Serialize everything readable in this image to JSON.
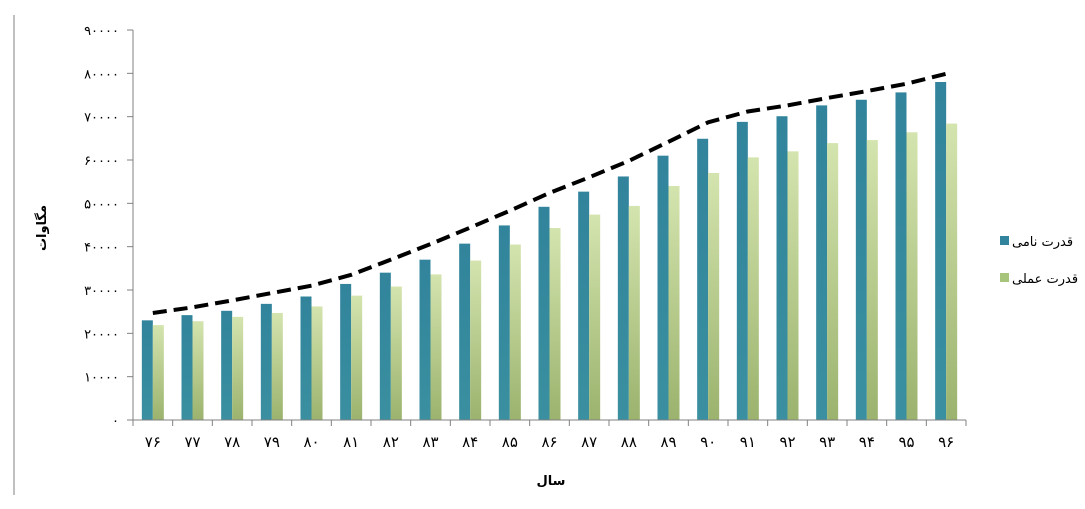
{
  "chart_data": {
    "type": "bar",
    "xlabel": "سال",
    "ylabel": "مگاوات",
    "ylim": [
      0,
      90000
    ],
    "ytick_values": [
      0,
      10000,
      20000,
      30000,
      40000,
      50000,
      60000,
      70000,
      80000,
      90000
    ],
    "ytick_labels": [
      "۰",
      "۱۰۰۰۰",
      "۲۰۰۰۰",
      "۳۰۰۰۰",
      "۴۰۰۰۰",
      "۵۰۰۰۰",
      "۶۰۰۰۰",
      "۷۰۰۰۰",
      "۸۰۰۰۰",
      "۹۰۰۰۰"
    ],
    "categories": [
      "۷۶",
      "۷۷",
      "۷۸",
      "۷۹",
      "۸۰",
      "۸۱",
      "۸۲",
      "۸۳",
      "۸۴",
      "۸۵",
      "۸۶",
      "۸۷",
      "۸۸",
      "۸۹",
      "۹۰",
      "۹۱",
      "۹۲",
      "۹۳",
      "۹۴",
      "۹۵",
      "۹۶"
    ],
    "series": [
      {
        "name": "قدرت نامی",
        "color": "#31849b",
        "values": [
          23000,
          24200,
          25200,
          26800,
          28500,
          31400,
          34000,
          37000,
          40700,
          44900,
          49200,
          52700,
          56200,
          61000,
          64900,
          68800,
          70100,
          72600,
          73900,
          75600,
          78000
        ]
      },
      {
        "name": "قدرت عملی",
        "color": "#c2d69b",
        "values": [
          21900,
          22800,
          23800,
          24700,
          26200,
          28700,
          30800,
          33600,
          36800,
          40500,
          44300,
          47400,
          49400,
          54000,
          57000,
          60600,
          62000,
          63900,
          64600,
          66400,
          68400
        ]
      }
    ],
    "trend_line": {
      "style": "dashed",
      "color": "#000000",
      "values": [
        24700,
        26000,
        27600,
        29300,
        31000,
        33500,
        37000,
        40600,
        44400,
        48300,
        52400,
        56000,
        59800,
        64200,
        68700,
        71200,
        72600,
        74300,
        75900,
        77600,
        79900
      ]
    },
    "legend_position": "right",
    "grid": false
  }
}
